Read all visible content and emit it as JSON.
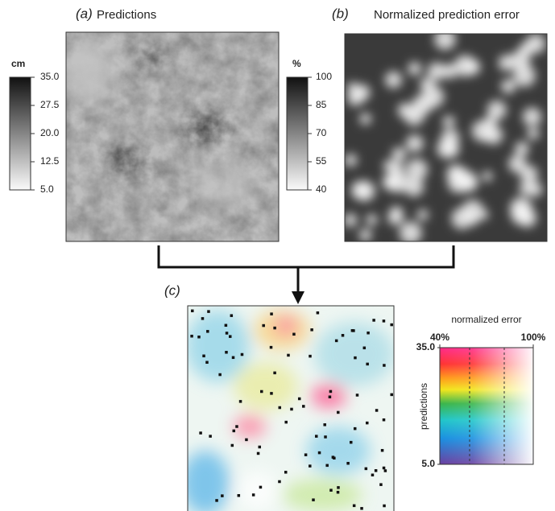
{
  "panels": {
    "a": {
      "label": "(a)",
      "title": "Predictions",
      "colorbar": {
        "unit": "cm",
        "lim": [
          5,
          35
        ],
        "ticks": [
          {
            "value": 35,
            "label": "35.0"
          },
          {
            "value": 27.5,
            "label": "27.5"
          },
          {
            "value": 20,
            "label": "20.0"
          },
          {
            "value": 12.5,
            "label": "12.5"
          },
          {
            "value": 5,
            "label": "5.0"
          }
        ]
      }
    },
    "b": {
      "label": "(b)",
      "title": "Normalized prediction error",
      "colorbar": {
        "unit": "%",
        "lim": [
          40,
          100
        ],
        "ticks": [
          100,
          85,
          70,
          55,
          40
        ]
      }
    },
    "c": {
      "label": "(c)",
      "legend": {
        "x_title": "normalized error",
        "y_title": "predictions",
        "xlim": [
          40,
          100
        ],
        "xticks": [
          {
            "value": 40,
            "label": "40%"
          },
          {
            "value": 100,
            "label": "100%"
          }
        ],
        "ylim": [
          5,
          35
        ],
        "yticks": [
          {
            "value": 35,
            "label": "35.0"
          },
          {
            "value": 5,
            "label": "5.0"
          }
        ]
      }
    }
  }
}
